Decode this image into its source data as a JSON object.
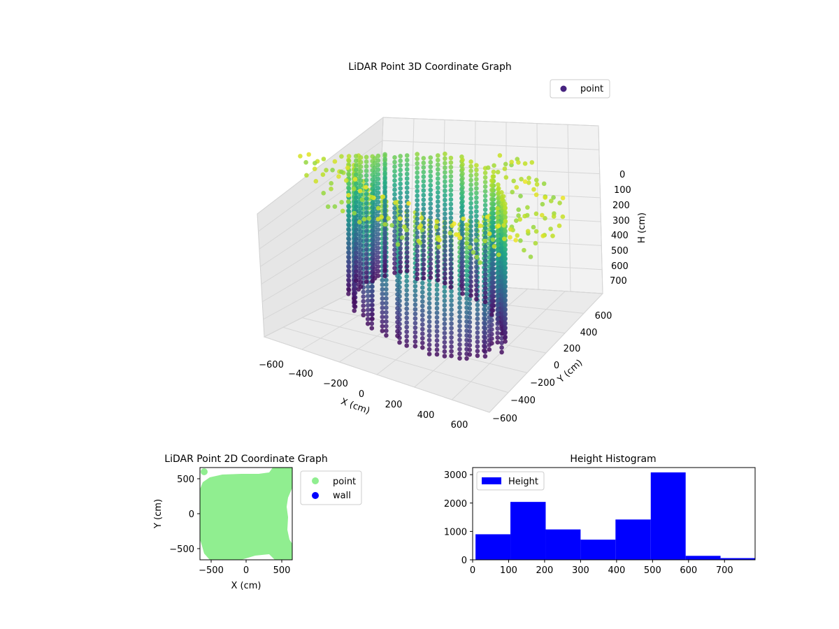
{
  "chart_data": [
    {
      "type": "scatter",
      "title": "LiDAR Point 3D Coordinate Graph",
      "xlabel": "X (cm)",
      "ylabel": "Y (cm)",
      "zlabel": "H (cm)",
      "projection": "3d",
      "colormap": "viridis",
      "xlim": [
        -650,
        650
      ],
      "ylim": [
        -650,
        650
      ],
      "zlim": [
        750,
        0
      ],
      "x_ticks": [
        "−600",
        "−400",
        "−200",
        "0",
        "200",
        "400",
        "600"
      ],
      "y_ticks": [
        "−600",
        "−400",
        "−200",
        "0",
        "200",
        "400",
        "600"
      ],
      "z_ticks": [
        "0",
        "100",
        "200",
        "300",
        "400",
        "500",
        "600",
        "700"
      ],
      "legend": {
        "position": "top-right",
        "entries": [
          {
            "label": "point",
            "color": "#46237f"
          }
        ]
      },
      "series": [
        {
          "name": "point",
          "description_shape": "ring of points, radius ~300–450 cm, heights 0–750 cm"
        }
      ],
      "grid": true
    },
    {
      "type": "scatter",
      "title": "LiDAR Point 2D Coordinate Graph",
      "xlabel": "X (cm)",
      "ylabel": "Y (cm)",
      "xlim": [
        -650,
        650
      ],
      "ylim": [
        -650,
        650
      ],
      "x_ticks": [
        "−500",
        "0",
        "500"
      ],
      "y_ticks": [
        "−500",
        "0",
        "500"
      ],
      "legend": {
        "position": "outside-right",
        "entries": [
          {
            "label": "point",
            "color": "#90ee90"
          },
          {
            "label": "wall",
            "color": "#0000ff"
          }
        ]
      }
    },
    {
      "type": "bar",
      "title": "Height Histogram",
      "xlim": [
        0,
        785
      ],
      "ylim": [
        0,
        3250
      ],
      "x_ticks": [
        "0",
        "100",
        "200",
        "300",
        "400",
        "500",
        "600",
        "700"
      ],
      "y_ticks": [
        "0",
        "1000",
        "2000",
        "3000"
      ],
      "bar_color": "#0000ff",
      "legend": {
        "position": "top-left",
        "entries": [
          {
            "label": "Height",
            "color": "#0000ff"
          }
        ]
      },
      "bins": [
        {
          "start": 8,
          "end": 105,
          "count": 900
        },
        {
          "start": 105,
          "end": 203,
          "count": 2040
        },
        {
          "start": 203,
          "end": 300,
          "count": 1070
        },
        {
          "start": 300,
          "end": 397,
          "count": 710
        },
        {
          "start": 397,
          "end": 495,
          "count": 1420
        },
        {
          "start": 495,
          "end": 592,
          "count": 3080
        },
        {
          "start": 592,
          "end": 689,
          "count": 140
        },
        {
          "start": 689,
          "end": 785,
          "count": 60
        }
      ]
    }
  ]
}
